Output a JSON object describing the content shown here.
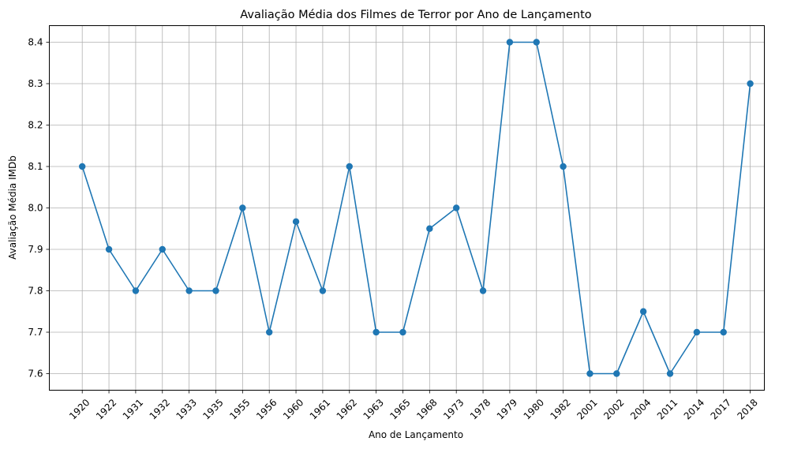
{
  "chart_data": {
    "type": "line",
    "title": "Avaliação Média dos Filmes de Terror por Ano de Lançamento",
    "xlabel": "Ano de Lançamento",
    "ylabel": "Avaliação Média IMDb",
    "categories": [
      "1920",
      "1922",
      "1931",
      "1932",
      "1933",
      "1935",
      "1955",
      "1956",
      "1960",
      "1961",
      "1962",
      "1963",
      "1965",
      "1968",
      "1973",
      "1978",
      "1979",
      "1980",
      "1982",
      "2001",
      "2002",
      "2004",
      "2011",
      "2014",
      "2017",
      "2018"
    ],
    "series": [
      {
        "values": [
          8.1,
          7.9,
          7.8,
          7.9,
          7.8,
          7.8,
          8.0,
          7.7,
          7.967,
          7.8,
          8.1,
          7.7,
          7.7,
          7.95,
          8.0,
          7.8,
          8.4,
          8.4,
          8.1,
          7.6,
          7.6,
          7.75,
          7.6,
          7.7,
          7.7,
          8.3
        ],
        "color": "#1f77b4",
        "marker": "circle"
      }
    ],
    "yticks": [
      "7.6",
      "7.7",
      "7.8",
      "7.9",
      "8.0",
      "8.1",
      "8.2",
      "8.3",
      "8.4"
    ],
    "ylim": [
      7.56,
      8.44
    ],
    "grid": true,
    "xtick_rotation": "45deg"
  }
}
